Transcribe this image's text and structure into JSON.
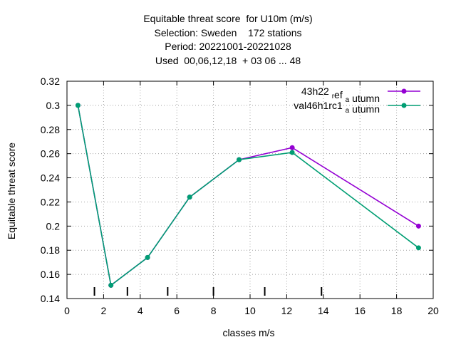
{
  "chart_data": {
    "type": "line",
    "title_lines": [
      "Equitable threat score  for U10m (m/s)",
      "Selection: Sweden    172 stations",
      "Period: 20221001-20221028",
      "Used  00,06,12,18  + 03 06 ... 48"
    ],
    "xlabel": "classes m/s",
    "ylabel": "Equitable threat score",
    "xlim": [
      0,
      20
    ],
    "ylim": [
      0.14,
      0.32
    ],
    "xticks": [
      0,
      2,
      4,
      6,
      8,
      10,
      12,
      14,
      16,
      18,
      20
    ],
    "yticks": [
      0.14,
      0.16,
      0.18,
      0.2,
      0.22,
      0.24,
      0.26,
      0.28,
      0.3,
      0.32
    ],
    "grid": true,
    "legend_position": "top-right",
    "class_marks": [
      1.5,
      3.3,
      5.5,
      8.0,
      10.8,
      13.9
    ],
    "series": [
      {
        "name": "43h22 ref autumn",
        "legend": {
          "pre": "43h22 ",
          "sub1": "r",
          "mid": "ef ",
          "sub2": "a",
          "post": " utumn"
        },
        "color": "#9400d3",
        "x": [
          0.6,
          2.4,
          4.4,
          6.7,
          9.4,
          12.3,
          19.2
        ],
        "y": [
          0.3,
          0.151,
          0.174,
          0.224,
          0.255,
          0.265,
          0.2
        ]
      },
      {
        "name": "val46h1rc1 autumn",
        "legend": {
          "pre": "val46h1rc1 ",
          "sub2": "a",
          "post": " utumn"
        },
        "color": "#009e73",
        "x": [
          0.6,
          2.4,
          4.4,
          6.7,
          9.4,
          12.3,
          19.2
        ],
        "y": [
          0.3,
          0.151,
          0.174,
          0.224,
          0.255,
          0.261,
          0.182
        ]
      }
    ]
  }
}
